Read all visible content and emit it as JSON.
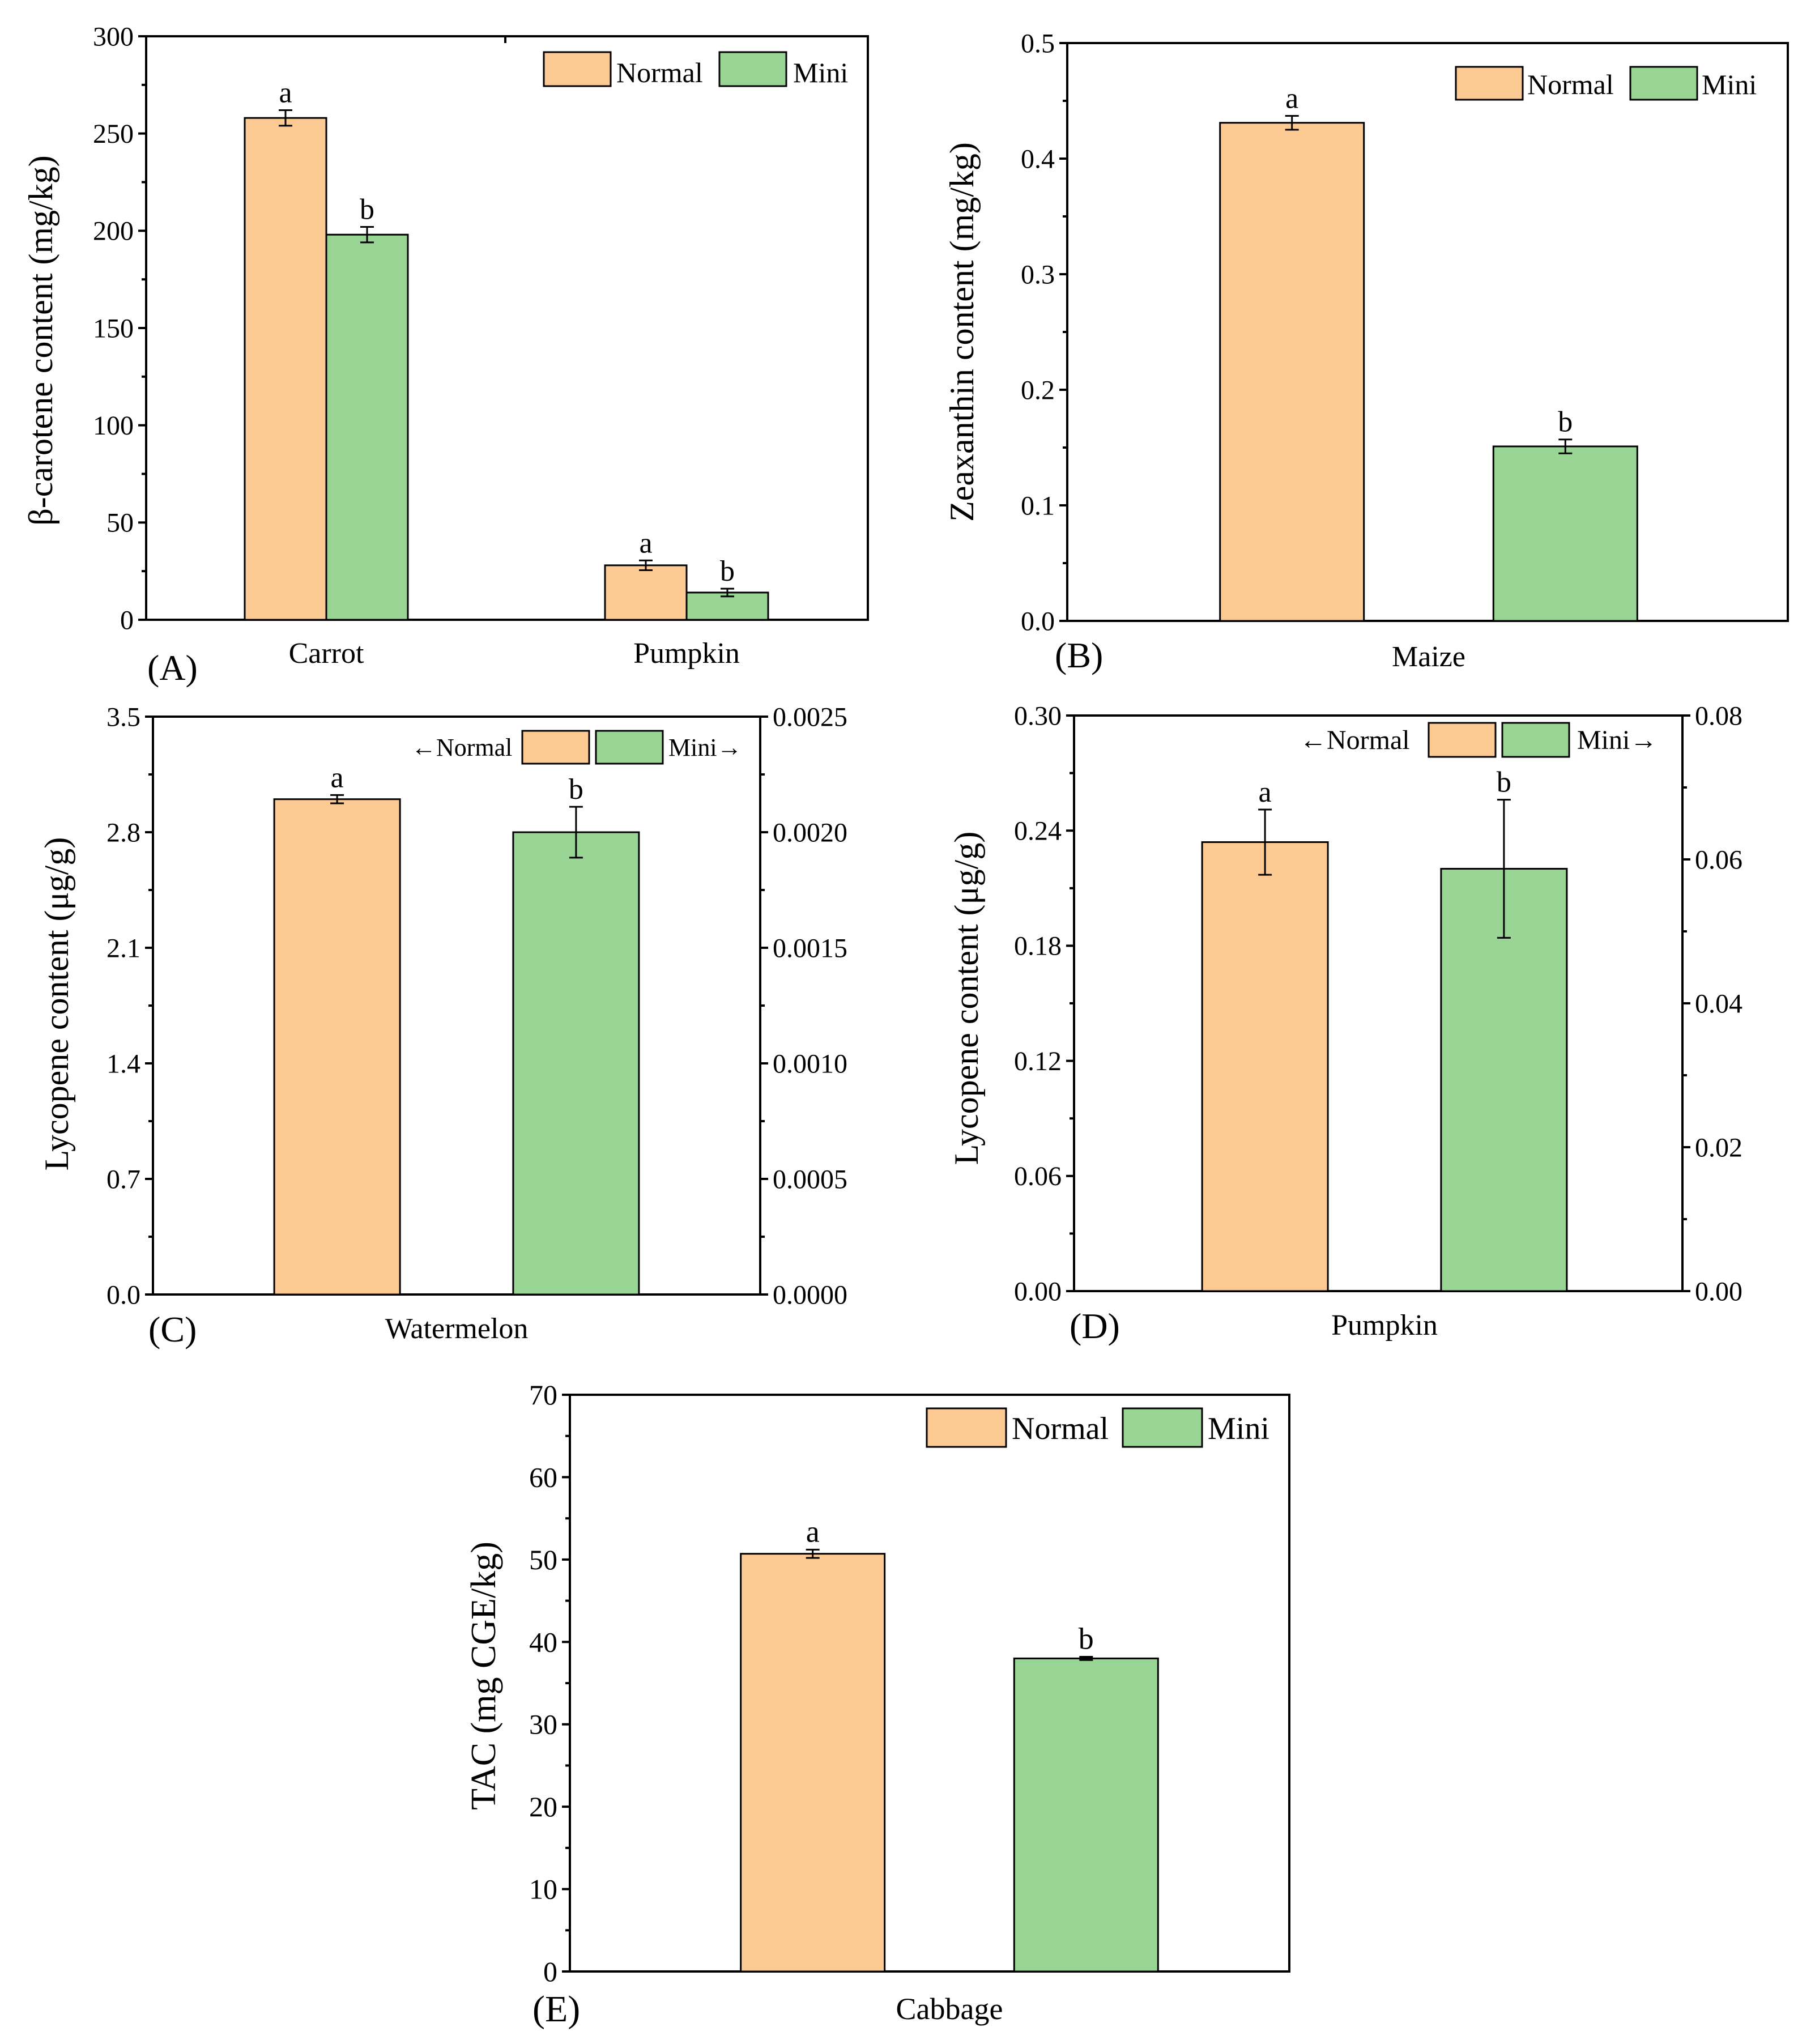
{
  "colors": {
    "normal": "#FDCA93",
    "mini": "#99D595",
    "axis": "#000000"
  },
  "chart_data": [
    {
      "id": "A",
      "type": "bar",
      "panel_label": "(A)",
      "ylabel": "β-carotene content (mg/kg)",
      "ylim": [
        0,
        300
      ],
      "yticks": [
        "0",
        "50",
        "100",
        "150",
        "200",
        "250",
        "300"
      ],
      "categories": [
        "Carrot",
        "Pumpkin"
      ],
      "legend": {
        "position": "top-right",
        "entries": [
          "Normal",
          "Mini"
        ]
      },
      "series": [
        {
          "name": "Normal",
          "values": [
            258,
            28
          ],
          "errors": [
            4,
            2.5
          ],
          "letters": [
            "a",
            "a"
          ]
        },
        {
          "name": "Mini",
          "values": [
            198,
            14
          ],
          "errors": [
            4,
            2
          ],
          "letters": [
            "b",
            "b"
          ]
        }
      ]
    },
    {
      "id": "B",
      "type": "bar",
      "panel_label": "(B)",
      "ylabel": "Zeaxanthin content (mg/kg)",
      "ylim": [
        0,
        0.5
      ],
      "yticks": [
        "0.0",
        "0.1",
        "0.2",
        "0.3",
        "0.4",
        "0.5"
      ],
      "categories": [
        "Maize"
      ],
      "legend": {
        "position": "top-right",
        "entries": [
          "Normal",
          "Mini"
        ]
      },
      "series": [
        {
          "name": "Normal",
          "values": [
            0.431
          ],
          "errors": [
            0.006
          ],
          "letters": [
            "a"
          ]
        },
        {
          "name": "Mini",
          "values": [
            0.151
          ],
          "errors": [
            0.006
          ],
          "letters": [
            "b"
          ]
        }
      ]
    },
    {
      "id": "C",
      "type": "bar",
      "panel_label": "(C)",
      "ylabel": "Lycopene content (μg/g)",
      "ylim": [
        0,
        3.5
      ],
      "yticks": [
        "0.0",
        "0.7",
        "1.4",
        "2.1",
        "2.8",
        "3.5"
      ],
      "y2lim": [
        0,
        0.0025
      ],
      "y2ticks": [
        "0.0000",
        "0.0005",
        "0.0010",
        "0.0015",
        "0.0020",
        "0.0025"
      ],
      "categories": [
        "Watermelon"
      ],
      "legend": {
        "position": "top-right",
        "entries": [
          "←Normal",
          "Mini→"
        ]
      },
      "series": [
        {
          "name": "Normal",
          "axis": "left",
          "values": [
            3.0
          ],
          "errors": [
            0.025
          ],
          "letters": [
            "a"
          ]
        },
        {
          "name": "Mini",
          "axis": "right",
          "values": [
            0.002
          ],
          "errors": [
            0.00011
          ],
          "letters": [
            "b"
          ]
        }
      ]
    },
    {
      "id": "D",
      "type": "bar",
      "panel_label": "(D)",
      "ylabel": "Lycopene content (μg/g)",
      "ylim": [
        0,
        0.3
      ],
      "yticks": [
        "0.00",
        "0.06",
        "0.12",
        "0.18",
        "0.24",
        "0.30"
      ],
      "y2lim": [
        0,
        0.08
      ],
      "y2ticks": [
        "0.00",
        "0.02",
        "0.04",
        "0.06",
        "0.08"
      ],
      "categories": [
        "Pumpkin"
      ],
      "legend": {
        "position": "top-right",
        "entries": [
          "←Normal",
          "Mini→"
        ]
      },
      "series": [
        {
          "name": "Normal",
          "axis": "left",
          "values": [
            0.234
          ],
          "errors": [
            0.017
          ],
          "letters": [
            "a"
          ]
        },
        {
          "name": "Mini",
          "axis": "right",
          "values": [
            0.0587
          ],
          "errors": [
            0.0096
          ],
          "letters": [
            "b"
          ]
        }
      ]
    },
    {
      "id": "E",
      "type": "bar",
      "panel_label": "(E)",
      "ylabel": "TAC (mg CGE/kg)",
      "ylim": [
        0,
        70
      ],
      "yticks": [
        "0",
        "10",
        "20",
        "30",
        "40",
        "50",
        "60",
        "70"
      ],
      "categories": [
        "Cabbage"
      ],
      "legend": {
        "position": "top-right",
        "entries": [
          "Normal",
          "Mini"
        ]
      },
      "series": [
        {
          "name": "Normal",
          "values": [
            50.7
          ],
          "errors": [
            0.5
          ],
          "letters": [
            "a"
          ]
        },
        {
          "name": "Mini",
          "values": [
            38.0
          ],
          "errors": [
            0.2
          ],
          "letters": [
            "b"
          ]
        }
      ]
    }
  ]
}
